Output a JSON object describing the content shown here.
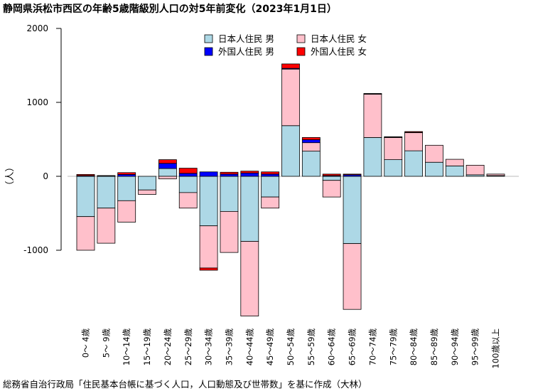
{
  "title": "静岡県浜松市西区の年齢5歳階級別人口の対5年前変化（2023年1月1日）",
  "footer": "総務省自治行政局「住民基本台帳に基づく人口，人口動態及び世帯数」を基に作成（大林）",
  "chart_data": {
    "type": "bar",
    "stacked": "diverging",
    "ylabel": "（人）",
    "ylim": [
      -2000,
      2000
    ],
    "yticks": [
      2000,
      1000,
      0,
      -1000
    ],
    "grid": false,
    "legend_position": "top-center",
    "categories": [
      "0～ 4歳",
      "5～ 9歳",
      "10～14歳",
      "15～19歳",
      "20～24歳",
      "25～29歳",
      "30～34歳",
      "35～39歳",
      "40～44歳",
      "45～49歳",
      "50～54歳",
      "55～59歳",
      "60～64歳",
      "65～69歳",
      "70～74歳",
      "75～79歳",
      "80～84歳",
      "85～89歳",
      "90～94歳",
      "95～99歳",
      "100歳以上"
    ],
    "series": [
      {
        "name": "日本人住民 男",
        "color": "#add8e6",
        "values": [
          -545,
          -430,
          -330,
          -185,
          105,
          -220,
          -670,
          -475,
          -880,
          -280,
          685,
          340,
          -55,
          -910,
          525,
          225,
          345,
          190,
          140,
          20,
          10
        ]
      },
      {
        "name": "日本人住民 女",
        "color": "#ffc0cb",
        "values": [
          -455,
          -475,
          -290,
          -60,
          -35,
          -210,
          -570,
          -555,
          -1010,
          -150,
          765,
          115,
          -225,
          -890,
          585,
          300,
          245,
          230,
          90,
          130,
          20
        ]
      },
      {
        "name": "外国人住民 男",
        "color": "#0000ff",
        "values": [
          10,
          5,
          25,
          0,
          70,
          40,
          60,
          30,
          45,
          30,
          10,
          40,
          10,
          20,
          5,
          5,
          5,
          0,
          0,
          0,
          0
        ]
      },
      {
        "name": "外国人住民 女",
        "color": "#ff0000",
        "values": [
          15,
          5,
          25,
          0,
          50,
          70,
          -30,
          25,
          25,
          30,
          60,
          30,
          20,
          10,
          5,
          5,
          10,
          0,
          0,
          0,
          0
        ]
      }
    ]
  }
}
